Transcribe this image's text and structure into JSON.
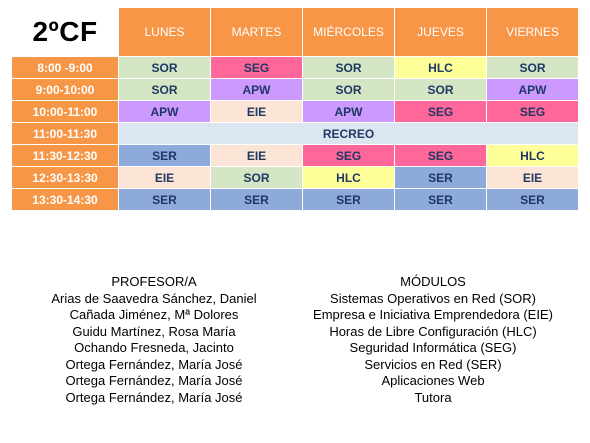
{
  "title": "2ºCF",
  "days": [
    "LUNES",
    "MARTES",
    "MIÉRCOLES",
    "JUEVES",
    "VIERNES"
  ],
  "colors": {
    "header": "#f79646",
    "SOR": "#d4e6c4",
    "SEG": "#ff6699",
    "HLC": "#ffff99",
    "APW": "#cc99ff",
    "EIE": "#fce4d6",
    "SER": "#8eaadb",
    "RECREO": "#dce6f1"
  },
  "rows": [
    {
      "time": "8:00 -9:00",
      "cells": [
        "SOR",
        "SEG",
        "SOR",
        "HLC",
        "SOR"
      ]
    },
    {
      "time": "9:00-10:00",
      "cells": [
        "SOR",
        "APW",
        "SOR",
        "SOR",
        "APW"
      ]
    },
    {
      "time": "10:00-11:00",
      "cells": [
        "APW",
        "EIE",
        "APW",
        "SEG",
        "SEG"
      ]
    },
    {
      "time": "11:00-11:30",
      "break": "RECREO"
    },
    {
      "time": "11:30-12:30",
      "cells": [
        "SER",
        "EIE",
        "SEG",
        "SEG",
        "HLC"
      ]
    },
    {
      "time": "12:30-13:30",
      "cells": [
        "EIE",
        "SOR",
        "HLC",
        "SER",
        "EIE"
      ]
    },
    {
      "time": "13:30-14:30",
      "cells": [
        "SER",
        "SER",
        "SER",
        "SER",
        "SER"
      ]
    }
  ],
  "profesores": {
    "heading": "PROFESOR/A",
    "items": [
      "Arias de Saavedra Sánchez, Daniel",
      "Cañada Jiménez, Mª Dolores",
      "Guidu Martínez, Rosa María",
      "Ochando Fresneda, Jacinto",
      "Ortega Fernández, María José",
      "Ortega Fernández, María José",
      "Ortega Fernández, María José"
    ]
  },
  "modulos": {
    "heading": "MÓDULOS",
    "items": [
      "Sistemas Operativos en Red (SOR)",
      "Empresa e Iniciativa Emprendedora (EIE)",
      "Horas de Libre Configuración (HLC)",
      "Seguridad Informática (SEG)",
      "Servicios en Red (SER)",
      "Aplicaciones Web",
      "Tutora"
    ]
  }
}
